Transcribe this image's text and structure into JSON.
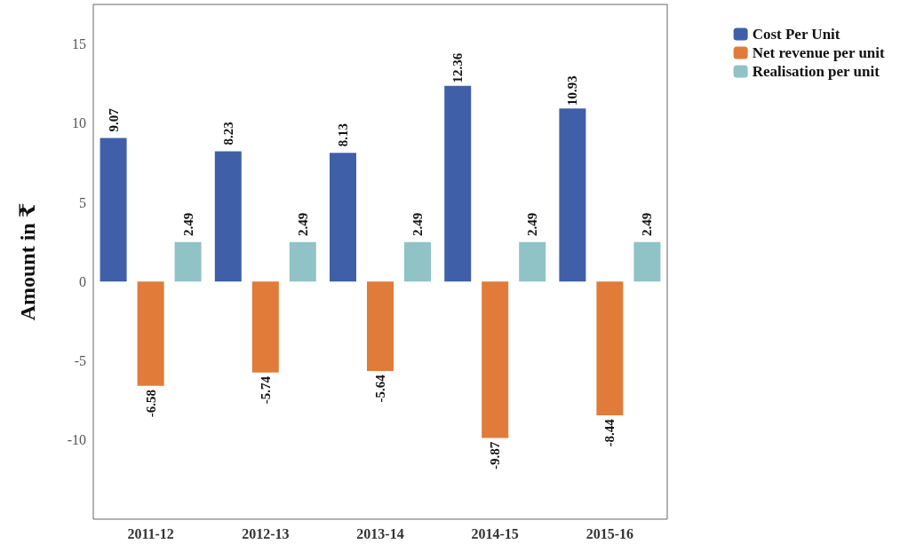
{
  "chart_data": {
    "type": "bar",
    "ylabel": "Amount in ₹",
    "categories": [
      "2011-12",
      "2012-13",
      "2013-14",
      "2014-15",
      "2015-16"
    ],
    "series": [
      {
        "name": "Cost Per Unit",
        "color": "#3f5fa8",
        "values": [
          9.07,
          8.23,
          8.13,
          12.36,
          10.93
        ]
      },
      {
        "name": "Net revenue per unit",
        "color": "#e07b39",
        "values": [
          -6.58,
          -5.74,
          -5.64,
          -9.87,
          -8.44
        ]
      },
      {
        "name": "Realisation per unit",
        "color": "#8fc3c6",
        "values": [
          2.49,
          2.49,
          2.49,
          2.49,
          2.49
        ]
      }
    ],
    "ylim": [
      -15,
      17.5
    ],
    "yticks": [
      -10,
      -5,
      0,
      5,
      10,
      15
    ],
    "grid": false,
    "legend": "top right",
    "data_labels": true
  }
}
